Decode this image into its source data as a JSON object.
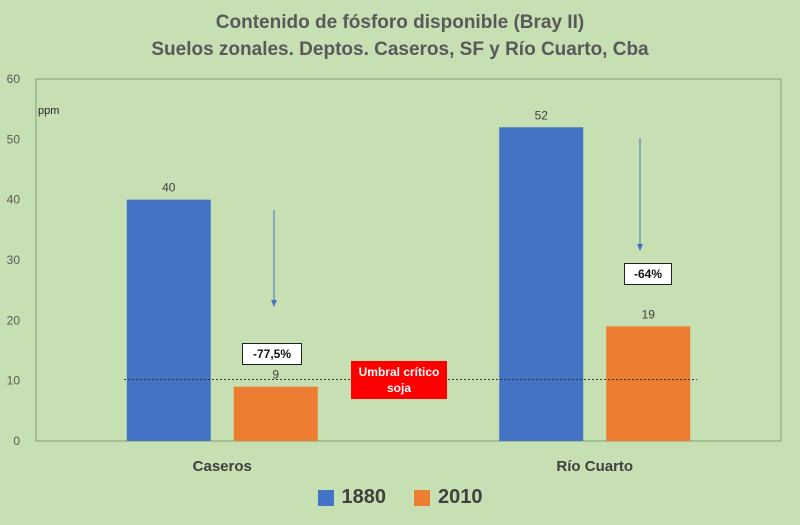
{
  "chart_data": {
    "type": "bar",
    "title": "Contenido de fósforo disponible (Bray II)",
    "subtitle": "Suelos zonales. Deptos. Caseros, SF y Río Cuarto, Cba",
    "ylabel": "ppm",
    "xlabel": "",
    "ylim": [
      0,
      60
    ],
    "yticks": [
      0,
      10,
      20,
      30,
      40,
      50,
      60
    ],
    "categories": [
      "Caseros",
      "Río Cuarto"
    ],
    "series": [
      {
        "name": "1880",
        "values": [
          40,
          52
        ],
        "color": "#4472c4"
      },
      {
        "name": "2010",
        "values": [
          9,
          19
        ],
        "color": "#ed7d31"
      }
    ],
    "data_labels": [
      "40",
      "9",
      "52",
      "19"
    ],
    "grid": false,
    "legend": "bottom",
    "threshold": {
      "value": 10.2,
      "label_line1": "Umbral crítico",
      "label_line2": "soja",
      "color": "#ff0000"
    },
    "annotations": [
      {
        "category": "Caseros",
        "text": "-77,5%"
      },
      {
        "category": "Río Cuarto",
        "text": "-64%"
      }
    ],
    "arrow_color": "#4472c4"
  }
}
